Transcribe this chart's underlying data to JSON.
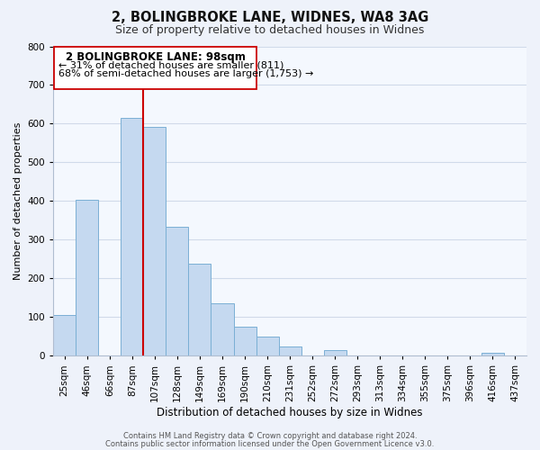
{
  "title": "2, BOLINGBROKE LANE, WIDNES, WA8 3AG",
  "subtitle": "Size of property relative to detached houses in Widnes",
  "xlabel": "Distribution of detached houses by size in Widnes",
  "ylabel": "Number of detached properties",
  "bar_labels": [
    "25sqm",
    "46sqm",
    "66sqm",
    "87sqm",
    "107sqm",
    "128sqm",
    "149sqm",
    "169sqm",
    "190sqm",
    "210sqm",
    "231sqm",
    "252sqm",
    "272sqm",
    "293sqm",
    "313sqm",
    "334sqm",
    "355sqm",
    "375sqm",
    "396sqm",
    "416sqm",
    "437sqm"
  ],
  "bar_values": [
    106,
    404,
    0,
    614,
    591,
    333,
    237,
    136,
    76,
    49,
    25,
    0,
    15,
    0,
    0,
    0,
    0,
    0,
    0,
    8,
    0
  ],
  "bar_color": "#c5d9f0",
  "bar_edge_color": "#7aafd4",
  "property_line_index": 3,
  "property_line_color": "#cc0000",
  "ylim": [
    0,
    800
  ],
  "yticks": [
    0,
    100,
    200,
    300,
    400,
    500,
    600,
    700,
    800
  ],
  "annotation_title": "2 BOLINGBROKE LANE: 98sqm",
  "annotation_line1": "← 31% of detached houses are smaller (811)",
  "annotation_line2": "68% of semi-detached houses are larger (1,753) →",
  "footer1": "Contains HM Land Registry data © Crown copyright and database right 2024.",
  "footer2": "Contains public sector information licensed under the Open Government Licence v3.0.",
  "bg_color": "#eef2fa",
  "plot_bg_color": "#f4f8fe",
  "grid_color": "#d0daea"
}
